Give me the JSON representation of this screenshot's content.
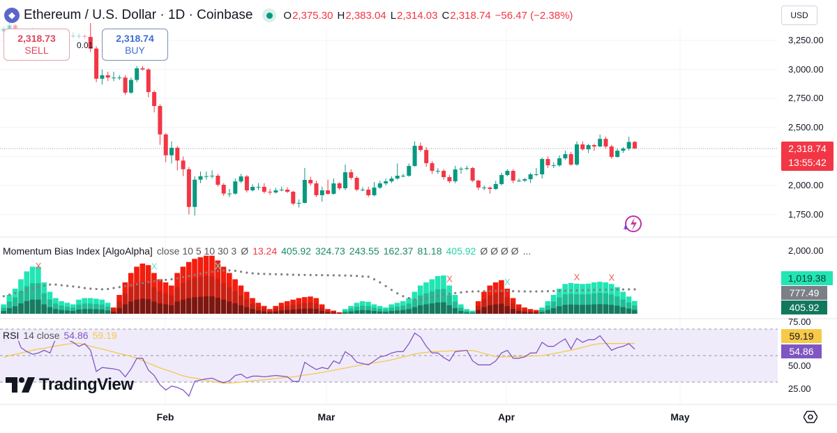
{
  "header": {
    "symbol_icon": "ethereum-icon",
    "title": "Ethereum / U.S. Dollar · 1D · Coinbase",
    "market_status": "market-open-dot",
    "ohlc": {
      "o_label": "O",
      "o": "2,375.30",
      "h_label": "H",
      "h": "2,383.04",
      "l_label": "L",
      "l": "2,314.03",
      "c_label": "C",
      "c": "2,318.74",
      "change": "−56.47 (−2.38%)"
    },
    "currency": "USD"
  },
  "trade": {
    "sell_price": "2,318.73",
    "sell_label": "SELL",
    "buy_price": "2,318.74",
    "buy_label": "BUY",
    "spread": "0.01"
  },
  "price_tag": {
    "price": "2,318.74",
    "countdown": "13:55:42"
  },
  "colors": {
    "up": "#089981",
    "down": "#f23645",
    "bull": "#22e5b4",
    "bear": "#f21d0e",
    "rsi": "#7e57c2",
    "rsi_ma": "#f2c94c",
    "rsi_band": "#f0ebfa"
  },
  "momentum": {
    "legend": {
      "name": "Momentum Bias Index [AlgoAlpha]",
      "params": "close 10 5 10 30 3",
      "empty1": "Ø",
      "v1": "13.24",
      "v2": "405.92",
      "v3": "324.73",
      "v4": "243.55",
      "v5": "162.37",
      "v6": "81.18",
      "v7": "405.92",
      "empties": "Ø Ø Ø Ø",
      "more": "..."
    },
    "axis_label": "2,000.00",
    "tags": {
      "bull": "1,019.38",
      "avg": "777.49",
      "last": "405.92"
    }
  },
  "rsi": {
    "legend": {
      "name": "RSI",
      "params": "14 close",
      "value": "54.86",
      "ma": "59.19"
    },
    "axis_labels": [
      "75.00",
      "50.00",
      "25.00"
    ],
    "tags": {
      "ma": "59.19",
      "value": "54.86"
    }
  },
  "time_axis": [
    "Feb",
    "Mar",
    "Apr",
    "May"
  ],
  "branding": "TradingView",
  "icons": {
    "settings": "settings-hexagon-icon",
    "assistant": "lightning-sparkle-icon"
  },
  "chart_data": {
    "type": "candlestick",
    "title": "Ethereum / U.S. Dollar · 1D · Coinbase",
    "price_ticks": [
      3250,
      3000,
      2750,
      2500,
      2000,
      1750
    ],
    "price_tick_labels": [
      "3,250.00",
      "3,000.00",
      "2,750.00",
      "2,500.00",
      "2,000.00",
      "1,750.00"
    ],
    "ylim": [
      1700,
      3600
    ],
    "last_price_line": 2318.74,
    "candles_ohlc": [
      [
        3330,
        3370,
        3300,
        3350
      ],
      [
        3350,
        3410,
        3330,
        3380
      ],
      [
        3380,
        3395,
        3300,
        3320
      ],
      [
        3320,
        3345,
        3270,
        3290
      ],
      [
        3290,
        3330,
        3270,
        3310
      ],
      [
        3310,
        3360,
        3290,
        3340
      ],
      [
        3340,
        3355,
        3280,
        3300
      ],
      [
        3300,
        3320,
        3250,
        3280
      ],
      [
        3280,
        3330,
        3260,
        3310
      ],
      [
        3310,
        3350,
        3290,
        3330
      ],
      [
        3330,
        3345,
        3280,
        3300
      ],
      [
        3300,
        3330,
        3270,
        3290
      ],
      [
        3290,
        3320,
        3270,
        3290
      ],
      [
        3290,
        3310,
        3265,
        3290
      ],
      [
        3290,
        3300,
        3260,
        3280
      ],
      [
        3280,
        3400,
        3150,
        3180
      ],
      [
        3180,
        3200,
        2890,
        2920
      ],
      [
        2920,
        3000,
        2870,
        2950
      ],
      [
        2950,
        2980,
        2900,
        2930
      ],
      [
        2930,
        2980,
        2900,
        2930
      ],
      [
        2930,
        2950,
        2910,
        2930
      ],
      [
        2930,
        2950,
        2780,
        2800
      ],
      [
        2800,
        2930,
        2790,
        2910
      ],
      [
        2910,
        3030,
        2890,
        3010
      ],
      [
        3010,
        3030,
        2990,
        3000
      ],
      [
        3000,
        3010,
        2760,
        2805
      ],
      [
        2805,
        2820,
        2630,
        2685
      ],
      [
        2685,
        2700,
        2350,
        2440
      ],
      [
        2440,
        2450,
        2200,
        2260
      ],
      [
        2260,
        2380,
        2190,
        2325
      ],
      [
        2325,
        2340,
        2130,
        2215
      ],
      [
        2215,
        2250,
        2080,
        2140
      ],
      [
        2140,
        2160,
        1750,
        1815
      ],
      [
        1815,
        2080,
        1740,
        2050
      ],
      [
        2050,
        2120,
        2020,
        2080
      ],
      [
        2080,
        2120,
        2050,
        2080
      ],
      [
        2080,
        2130,
        2060,
        2084
      ],
      [
        2084,
        2100,
        1990,
        2006
      ],
      [
        2006,
        2020,
        1910,
        1930
      ],
      [
        1930,
        1970,
        1900,
        1930
      ],
      [
        1930,
        2060,
        1920,
        2035
      ],
      [
        2035,
        2100,
        2020,
        2078
      ],
      [
        2078,
        2090,
        1940,
        1958
      ],
      [
        1958,
        2010,
        1950,
        1988
      ],
      [
        1988,
        2020,
        1960,
        1988
      ],
      [
        1988,
        2020,
        1930,
        1946
      ],
      [
        1946,
        1970,
        1920,
        1940
      ],
      [
        1940,
        1980,
        1930,
        1958
      ],
      [
        1958,
        1990,
        1950,
        1964
      ],
      [
        1964,
        1985,
        1935,
        1946
      ],
      [
        1946,
        1955,
        1830,
        1844
      ],
      [
        1844,
        1880,
        1810,
        1850
      ],
      [
        1850,
        2150,
        1845,
        2048
      ],
      [
        2048,
        2075,
        2000,
        2018
      ],
      [
        2018,
        2040,
        1900,
        1916
      ],
      [
        1916,
        1990,
        1860,
        1958
      ],
      [
        1958,
        2050,
        1920,
        1928
      ],
      [
        1928,
        2060,
        1920,
        2018
      ],
      [
        2018,
        2030,
        1960,
        1976
      ],
      [
        1976,
        2180,
        1960,
        2114
      ],
      [
        2114,
        2140,
        2050,
        2066
      ],
      [
        2066,
        2080,
        1950,
        1964
      ],
      [
        1964,
        1985,
        1950,
        1964
      ],
      [
        1964,
        1990,
        1900,
        1916
      ],
      [
        1916,
        2030,
        1905,
        1982
      ],
      [
        1982,
        2040,
        1970,
        2018
      ],
      [
        2018,
        2060,
        2000,
        2036
      ],
      [
        2036,
        2080,
        2020,
        2060
      ],
      [
        2060,
        2190,
        2050,
        2084
      ],
      [
        2084,
        2100,
        2070,
        2084
      ],
      [
        2084,
        2190,
        2075,
        2168
      ],
      [
        2168,
        2380,
        2160,
        2342
      ],
      [
        2342,
        2370,
        2290,
        2306
      ],
      [
        2306,
        2330,
        2160,
        2192
      ],
      [
        2192,
        2210,
        2100,
        2126
      ],
      [
        2126,
        2150,
        2100,
        2126
      ],
      [
        2126,
        2140,
        2050,
        2072
      ],
      [
        2072,
        2090,
        2020,
        2036
      ],
      [
        2036,
        2170,
        2020,
        2138
      ],
      [
        2138,
        2160,
        2100,
        2144
      ],
      [
        2144,
        2170,
        2130,
        2150
      ],
      [
        2150,
        2160,
        2030,
        2042
      ],
      [
        2042,
        2050,
        1960,
        1982
      ],
      [
        1982,
        2000,
        1960,
        1982
      ],
      [
        1982,
        1990,
        1930,
        1970
      ],
      [
        1970,
        2040,
        1960,
        2012
      ],
      [
        2012,
        2110,
        2000,
        2090
      ],
      [
        2090,
        2140,
        2080,
        2126
      ],
      [
        2126,
        2140,
        2020,
        2042
      ],
      [
        2042,
        2060,
        2030,
        2042
      ],
      [
        2042,
        2065,
        2030,
        2054
      ],
      [
        2054,
        2110,
        2020,
        2096
      ],
      [
        2096,
        2150,
        2080,
        2096
      ],
      [
        2096,
        2240,
        2060,
        2228
      ],
      [
        2228,
        2250,
        2150,
        2174
      ],
      [
        2174,
        2200,
        2150,
        2174
      ],
      [
        2174,
        2260,
        2160,
        2234
      ],
      [
        2234,
        2300,
        2220,
        2270
      ],
      [
        2270,
        2290,
        2170,
        2180
      ],
      [
        2180,
        2380,
        2170,
        2354
      ],
      [
        2354,
        2380,
        2300,
        2312
      ],
      [
        2312,
        2360,
        2280,
        2348
      ],
      [
        2348,
        2360,
        2300,
        2336
      ],
      [
        2336,
        2440,
        2330,
        2402
      ],
      [
        2402,
        2420,
        2320,
        2336
      ],
      [
        2336,
        2350,
        2230,
        2246
      ],
      [
        2246,
        2320,
        2240,
        2300
      ],
      [
        2300,
        2330,
        2280,
        2318
      ],
      [
        2318,
        2420,
        2300,
        2375
      ],
      [
        2375.3,
        2383.04,
        2314.03,
        2318.74
      ]
    ],
    "momentum_histogram": [
      300,
      600,
      800,
      1100,
      1350,
      1500,
      1500,
      1000,
      700,
      500,
      400,
      350,
      300,
      450,
      500,
      500,
      480,
      450,
      350,
      -200,
      -600,
      -1000,
      -1300,
      -1500,
      -1600,
      -1550,
      -1300,
      -1100,
      -1000,
      -900,
      -1300,
      -1500,
      -1650,
      -1750,
      -1800,
      -1850,
      -1850,
      -1700,
      -1500,
      -1300,
      -1100,
      -900,
      -700,
      -500,
      -350,
      -250,
      -150,
      -250,
      -350,
      -400,
      -450,
      -500,
      -530,
      -550,
      -500,
      -300,
      -150,
      -100,
      -50,
      150,
      250,
      350,
      400,
      380,
      300,
      250,
      200,
      300,
      350,
      400,
      500,
      700,
      900,
      1000,
      1100,
      1200,
      1220,
      900,
      600,
      300,
      150,
      100,
      -400,
      -700,
      -900,
      -1000,
      -1070,
      -800,
      -500,
      -300,
      -200,
      -150,
      -120,
      200,
      400,
      600,
      800,
      950,
      980,
      960,
      950,
      960,
      1000,
      1020,
      1000,
      950,
      850,
      700,
      550,
      405.92
    ],
    "momentum_average": [
      560,
      610,
      660,
      710,
      760,
      810,
      860,
      900,
      930,
      930,
      910,
      890,
      870,
      850,
      820,
      800,
      790,
      780,
      790,
      820,
      850,
      880,
      910,
      940,
      980,
      1010,
      1040,
      1060,
      1080,
      1100,
      1130,
      1170,
      1200,
      1240,
      1280,
      1310,
      1340,
      1360,
      1375,
      1380,
      1370,
      1340,
      1310,
      1290,
      1275,
      1270,
      1265,
      1260,
      1255,
      1250,
      1245,
      1240,
      1238,
      1235,
      1232,
      1230,
      1228,
      1225,
      1222,
      1220,
      1215,
      1205,
      1190,
      1180,
      1100,
      1000,
      880,
      760,
      650,
      560,
      500,
      460,
      445,
      480,
      530,
      570,
      600,
      630,
      660,
      680,
      700,
      710,
      715,
      720,
      725,
      730,
      730,
      725,
      720,
      715,
      712,
      710,
      712,
      715,
      720,
      725,
      730,
      735,
      740,
      745,
      750,
      755,
      760,
      765,
      770,
      772,
      775,
      776,
      777,
      777.49
    ],
    "momentum_signals": [
      {
        "bar": 6,
        "side": "bearish"
      },
      {
        "bar": 26,
        "side": "bullish"
      },
      {
        "bar": 37,
        "side": "bullish"
      },
      {
        "bar": 77,
        "side": "bearish"
      },
      {
        "bar": 87,
        "side": "bullish"
      },
      {
        "bar": 99,
        "side": "bearish"
      },
      {
        "bar": 105,
        "side": "bearish"
      }
    ],
    "momentum_ylim": [
      0,
      2000
    ],
    "rsi_values": [
      61,
      64,
      67,
      56,
      53,
      51,
      52,
      54,
      52,
      63,
      62.5,
      62,
      60,
      57,
      59,
      54,
      38,
      41,
      40.5,
      40,
      39,
      34,
      40,
      48,
      48,
      39,
      35,
      28,
      24,
      27,
      26,
      24,
      19.5,
      30.5,
      31.5,
      32.5,
      33,
      31,
      29.5,
      31,
      35,
      36,
      33,
      34.5,
      34.5,
      34,
      34.5,
      35,
      34.5,
      34,
      30.5,
      30.5,
      45,
      42,
      39.5,
      41,
      40,
      46,
      44,
      53,
      50,
      45,
      44,
      43,
      46,
      49,
      50,
      52,
      53,
      53,
      59,
      67,
      64,
      57,
      52,
      52,
      48.5,
      46,
      53,
      53.5,
      54,
      46,
      43,
      43,
      43,
      46,
      52,
      54,
      48,
      48,
      49,
      52,
      52,
      60,
      57,
      57,
      60,
      62.6,
      55,
      63,
      60,
      62,
      62,
      65,
      59.5,
      54,
      56,
      57,
      59,
      54.86
    ],
    "rsi_ma_values": [
      48.7,
      50,
      51,
      52,
      53,
      54,
      55,
      55.5,
      56.5,
      57.2,
      58,
      58.7,
      59.2,
      59.4,
      58.3,
      57,
      56,
      55,
      53.8,
      52.7,
      51.6,
      50.5,
      49.4,
      48,
      46.2,
      44.3,
      42.5,
      40.7,
      39.2,
      37.8,
      36.3,
      34.7,
      33.7,
      33,
      32.2,
      31.3,
      30.5,
      29.8,
      29.2,
      29.2,
      29.6,
      30,
      30.5,
      31,
      31.4,
      31.8,
      32.2,
      32.7,
      33.1,
      33.5,
      34,
      34.6,
      35.3,
      35.9,
      36.6,
      37.3,
      38.1,
      39,
      39.8,
      40.6,
      41.5,
      42.3,
      43.2,
      43.9,
      44.6,
      45.2,
      45.9,
      46.8,
      47.9,
      49,
      50.1,
      51.3,
      51.9,
      52.4,
      53,
      53.1,
      53.3,
      53.5,
      53.6,
      53.8,
      53.9,
      53.8,
      52.9,
      51.6,
      50.3,
      49.3,
      49,
      49.1,
      49.3,
      49.4,
      49.6,
      49.7,
      49.9,
      50,
      50.7,
      51.5,
      52.3,
      53.2,
      54,
      55.1,
      56.2,
      57.3,
      58.4,
      59,
      59.1,
      59.1,
      59.1,
      59.2,
      59.2,
      59.19
    ],
    "rsi_bands": [
      70,
      50,
      30
    ],
    "rsi_ylim": [
      0,
      100
    ],
    "x_tick_labels": [
      "Feb",
      "Mar",
      "Apr",
      "May"
    ],
    "grid": true
  }
}
